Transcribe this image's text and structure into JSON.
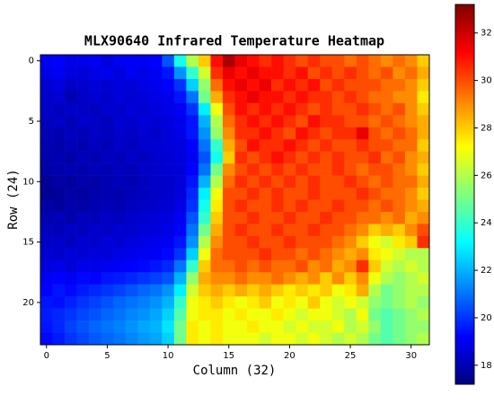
{
  "chart_data": {
    "type": "heatmap",
    "title": "MLX90640 Infrared Temperature Heatmap",
    "x_label": "Column (32)",
    "y_label": "Row (24)",
    "xlim": [
      -0.5,
      31.5
    ],
    "ylim": [
      23.5,
      -0.5
    ],
    "xticks": [
      0,
      5,
      10,
      15,
      20,
      25,
      30
    ],
    "yticks": [
      0,
      5,
      10,
      15,
      20
    ],
    "colormap": "jet",
    "clim": [
      17.2,
      33.2
    ],
    "cticks": [
      18,
      20,
      22,
      24,
      26,
      28,
      30,
      32
    ],
    "values": [
      [
        19,
        19.2,
        18.8,
        18.9,
        19,
        18.7,
        19,
        19.1,
        19,
        19.2,
        20.5,
        23.5,
        26,
        28,
        31,
        32.5,
        31.5,
        31,
        30.5,
        31,
        30.5,
        30,
        30.5,
        30,
        30,
        29.5,
        30,
        29.5,
        29,
        29.5,
        29,
        28
      ],
      [
        18.8,
        19,
        18.7,
        18.6,
        18.8,
        18.9,
        18.7,
        19,
        18.8,
        19,
        19.5,
        21.5,
        24,
        26.5,
        30.5,
        31.5,
        31,
        31.5,
        31,
        31,
        30.5,
        31,
        30,
        30.5,
        30,
        30.5,
        30,
        29.5,
        30,
        29,
        29.5,
        28.5
      ],
      [
        18.5,
        18.7,
        18.3,
        18.4,
        18.6,
        18.5,
        18.7,
        18.6,
        18.8,
        18.9,
        19.2,
        20,
        22.5,
        25.5,
        29.5,
        31,
        31.5,
        31,
        31.5,
        30.5,
        31,
        30.5,
        31,
        30,
        30.5,
        30,
        30,
        30,
        29.5,
        29.5,
        29,
        28
      ],
      [
        18.4,
        18.5,
        18,
        18.3,
        18.5,
        18.4,
        18.6,
        18.5,
        18.6,
        18.8,
        18.9,
        19.5,
        21,
        25,
        28.5,
        30.5,
        31,
        31.5,
        31,
        31,
        30.5,
        31,
        30.5,
        30.5,
        30,
        30.5,
        30,
        29.5,
        29.5,
        29,
        29,
        27.5
      ],
      [
        18.3,
        18.2,
        18.4,
        18.3,
        18.2,
        18.5,
        18.4,
        18.6,
        18.5,
        18.7,
        18.8,
        19,
        20,
        23,
        27,
        30,
        31,
        30.5,
        31,
        30.5,
        31,
        30.5,
        30,
        30.5,
        30,
        30,
        30.5,
        30,
        29.5,
        30,
        29,
        28
      ],
      [
        18.2,
        18.3,
        18.1,
        18.4,
        18.3,
        18.2,
        18.5,
        18.4,
        18.6,
        18.5,
        18.7,
        18.9,
        19.5,
        22,
        26,
        29.5,
        30.5,
        31,
        30.5,
        31,
        30.5,
        30,
        31,
        30.5,
        30.5,
        30,
        30,
        29.5,
        30,
        29.5,
        29,
        28.5
      ],
      [
        18.1,
        18,
        18.2,
        18.1,
        18.3,
        18.2,
        18.4,
        18.3,
        18.5,
        18.4,
        18.6,
        18.8,
        19.5,
        21.5,
        25.5,
        29,
        30.5,
        30.5,
        31,
        30.5,
        30,
        31,
        30.5,
        30,
        30.5,
        30.5,
        31.5,
        30,
        29.5,
        30,
        29.5,
        28.5
      ],
      [
        18,
        17.9,
        18.1,
        18,
        18.2,
        18.1,
        18.3,
        18.2,
        18.4,
        18.5,
        18.6,
        18.7,
        19.2,
        21,
        24,
        28.5,
        30,
        31,
        30.5,
        30.5,
        31,
        30.5,
        30,
        30.5,
        30,
        30,
        30.5,
        30,
        30,
        29.5,
        29.5,
        28
      ],
      [
        17.9,
        18,
        17.8,
        18.1,
        18,
        18.2,
        18.1,
        18.3,
        18.2,
        18.4,
        18.5,
        18.7,
        19,
        20.5,
        23.5,
        28,
        30.5,
        30,
        30.5,
        31,
        30.5,
        30,
        30.5,
        30,
        30.5,
        30,
        30,
        30.5,
        29.5,
        30,
        29,
        28.5
      ],
      [
        17.8,
        17.9,
        18,
        17.9,
        18.1,
        18,
        18.2,
        18.1,
        18.3,
        18.4,
        18.5,
        18.6,
        19.2,
        21,
        25,
        29,
        30,
        30.5,
        30,
        30.5,
        30,
        30.5,
        30,
        30,
        30.5,
        30,
        29.5,
        30,
        30,
        29.5,
        29,
        28
      ],
      [
        17.6,
        17.8,
        17.7,
        17.9,
        17.8,
        18,
        18.1,
        18,
        18.2,
        18.3,
        18.4,
        18.6,
        19.5,
        22,
        26,
        29.5,
        30.5,
        30,
        30.5,
        30,
        30.5,
        30,
        30.5,
        30,
        30,
        30.5,
        30,
        29.5,
        30,
        29.5,
        29.5,
        28.5
      ],
      [
        17.5,
        17.6,
        17.8,
        17.7,
        17.9,
        18,
        17.9,
        18.1,
        18.2,
        18.3,
        18.4,
        18.7,
        19.8,
        23,
        27,
        30,
        30,
        30.5,
        30,
        30.5,
        30,
        30,
        30.5,
        30,
        30,
        30,
        30.5,
        30,
        29.5,
        29.5,
        29,
        28
      ],
      [
        17.8,
        17.7,
        17.9,
        17.8,
        18,
        18.1,
        18,
        18.2,
        18.3,
        18.4,
        18.5,
        18.8,
        20,
        23.5,
        27.5,
        30,
        30.5,
        30,
        30,
        30.5,
        30,
        30.5,
        30,
        30,
        30.5,
        30,
        30,
        29.5,
        30,
        29.5,
        29,
        28.5
      ],
      [
        18,
        18.1,
        17.9,
        18.2,
        18.1,
        18.3,
        18.2,
        18.4,
        18.5,
        18.6,
        18.7,
        19,
        20.5,
        24,
        28,
        30,
        30,
        30.5,
        30,
        30,
        30.5,
        30,
        30,
        30.5,
        30,
        30,
        29.5,
        29.5,
        29,
        29.5,
        28.5,
        29
      ],
      [
        18.2,
        18.1,
        18.3,
        18.2,
        18.4,
        18.3,
        18.5,
        18.4,
        18.6,
        18.7,
        18.8,
        19.2,
        21,
        25,
        28.5,
        30,
        30.5,
        30,
        30,
        30.5,
        30,
        30,
        30.5,
        30,
        30,
        29.5,
        29,
        28,
        28.5,
        28,
        29,
        30
      ],
      [
        18.3,
        18.4,
        18.2,
        18.5,
        18.4,
        18.6,
        18.5,
        18.7,
        18.8,
        18.9,
        19,
        19.5,
        21.5,
        26,
        29,
        30,
        30,
        30.5,
        30,
        30,
        30.5,
        30,
        30,
        30,
        29.5,
        29,
        28,
        27,
        26.5,
        27.5,
        28,
        30.5
      ],
      [
        18.5,
        18.4,
        18.6,
        18.5,
        18.7,
        18.6,
        18.8,
        18.9,
        19,
        19.1,
        19.3,
        20,
        22.5,
        27,
        29.5,
        30,
        30,
        30,
        30.5,
        30,
        30,
        29.5,
        30,
        29.5,
        29,
        28.5,
        29,
        27.5,
        27,
        26.5,
        26,
        26
      ],
      [
        18.7,
        18.8,
        18.6,
        18.9,
        18.8,
        19,
        19.1,
        19.2,
        19.3,
        19.5,
        19.8,
        21,
        24,
        28,
        29.5,
        29.5,
        30,
        29.5,
        30,
        29.5,
        29.5,
        30,
        29,
        29.5,
        28.5,
        29,
        30.5,
        28,
        26.5,
        26,
        26.5,
        26
      ],
      [
        19,
        19.2,
        19,
        19.3,
        19.2,
        19.5,
        19.6,
        19.8,
        20,
        20.2,
        20.5,
        22,
        25.5,
        28.5,
        29,
        29,
        29.5,
        29,
        29,
        29.5,
        29,
        28.5,
        29,
        28,
        29,
        28,
        29,
        27,
        26,
        25.5,
        26,
        26.5
      ],
      [
        19.2,
        19.5,
        19.3,
        19.6,
        19.8,
        20,
        20.2,
        20.5,
        20.8,
        21,
        21.5,
        23,
        26.5,
        28,
        28.5,
        28,
        28.5,
        28,
        28.5,
        28,
        27.5,
        28,
        27.5,
        28,
        27,
        27.5,
        28.5,
        26,
        25,
        25.5,
        26,
        26
      ],
      [
        19.5,
        19.4,
        19.7,
        20,
        20.2,
        20.5,
        20.8,
        21,
        21.2,
        21.5,
        22,
        24,
        27,
        27.5,
        28,
        27.5,
        27,
        27.5,
        28,
        27,
        27.5,
        27,
        28,
        27,
        26.5,
        27,
        26.5,
        25.5,
        25,
        25.5,
        26,
        25.5
      ],
      [
        19.6,
        19.8,
        20,
        20.3,
        20.5,
        20.8,
        21,
        21.3,
        21.5,
        21.8,
        22.5,
        24.5,
        27,
        27.5,
        27.5,
        27,
        27.5,
        27,
        27,
        27.5,
        27,
        26.5,
        27,
        27,
        26.5,
        26,
        27,
        25,
        24.5,
        25,
        25.5,
        26
      ],
      [
        19.5,
        19.8,
        20.2,
        20.5,
        20.8,
        21,
        21.2,
        21.5,
        21.8,
        22,
        22.8,
        25,
        27.5,
        27,
        27.5,
        27,
        27,
        27.5,
        27,
        27,
        26.5,
        27,
        26.5,
        26.5,
        27,
        26,
        26.5,
        25.5,
        24.5,
        25,
        25.5,
        25.5
      ],
      [
        19.3,
        19.6,
        20,
        20.3,
        20.6,
        20.8,
        21,
        21.3,
        21.6,
        21.8,
        22.5,
        25,
        27.5,
        27,
        27.5,
        27,
        27,
        27,
        26.5,
        27,
        27,
        26.5,
        27,
        26.5,
        26,
        26.5,
        26,
        25,
        24.5,
        25,
        25.5,
        26
      ]
    ]
  }
}
